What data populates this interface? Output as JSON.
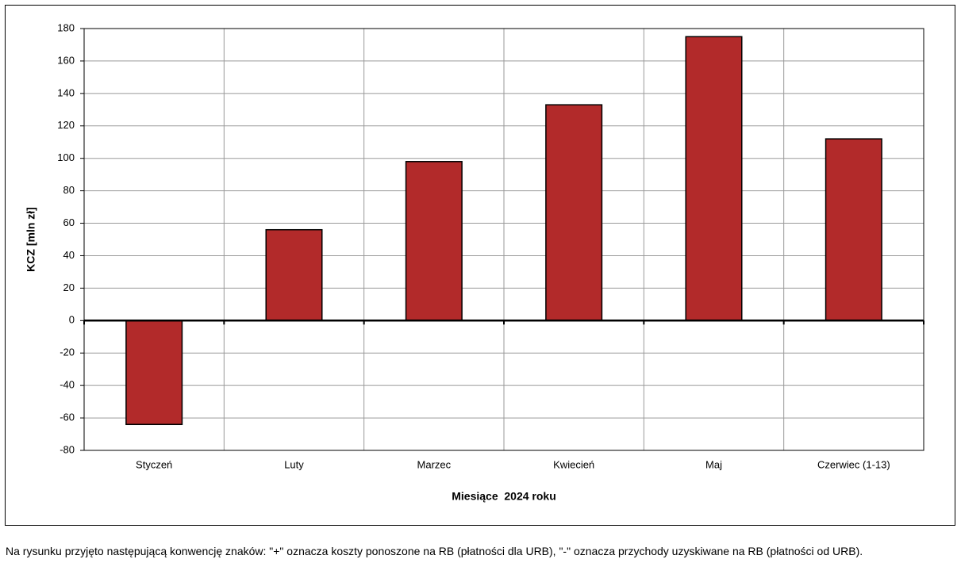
{
  "chart_data": {
    "type": "bar",
    "x_label": "Miesiące  2024 roku",
    "y_label": "KCZ [mln zł]",
    "categories": [
      "Styczeń",
      "Luty",
      "Marzec",
      "Kwiecień",
      "Maj",
      "Czerwiec (1-13)"
    ],
    "values": [
      -64,
      56,
      98,
      133,
      175,
      112
    ],
    "color": "#b22a2a",
    "ylim": [
      -80,
      180
    ],
    "yticks": [
      -80,
      -60,
      -40,
      -20,
      0,
      20,
      40,
      60,
      80,
      100,
      120,
      140,
      160,
      180
    ],
    "grid": true
  },
  "caption": "Na rysunku przyjęto następującą konwencję znaków: \"+\" oznacza koszty ponoszone na RB (płatności dla URB), \"-\" oznacza przychody uzyskiwane na RB (płatności od URB)."
}
